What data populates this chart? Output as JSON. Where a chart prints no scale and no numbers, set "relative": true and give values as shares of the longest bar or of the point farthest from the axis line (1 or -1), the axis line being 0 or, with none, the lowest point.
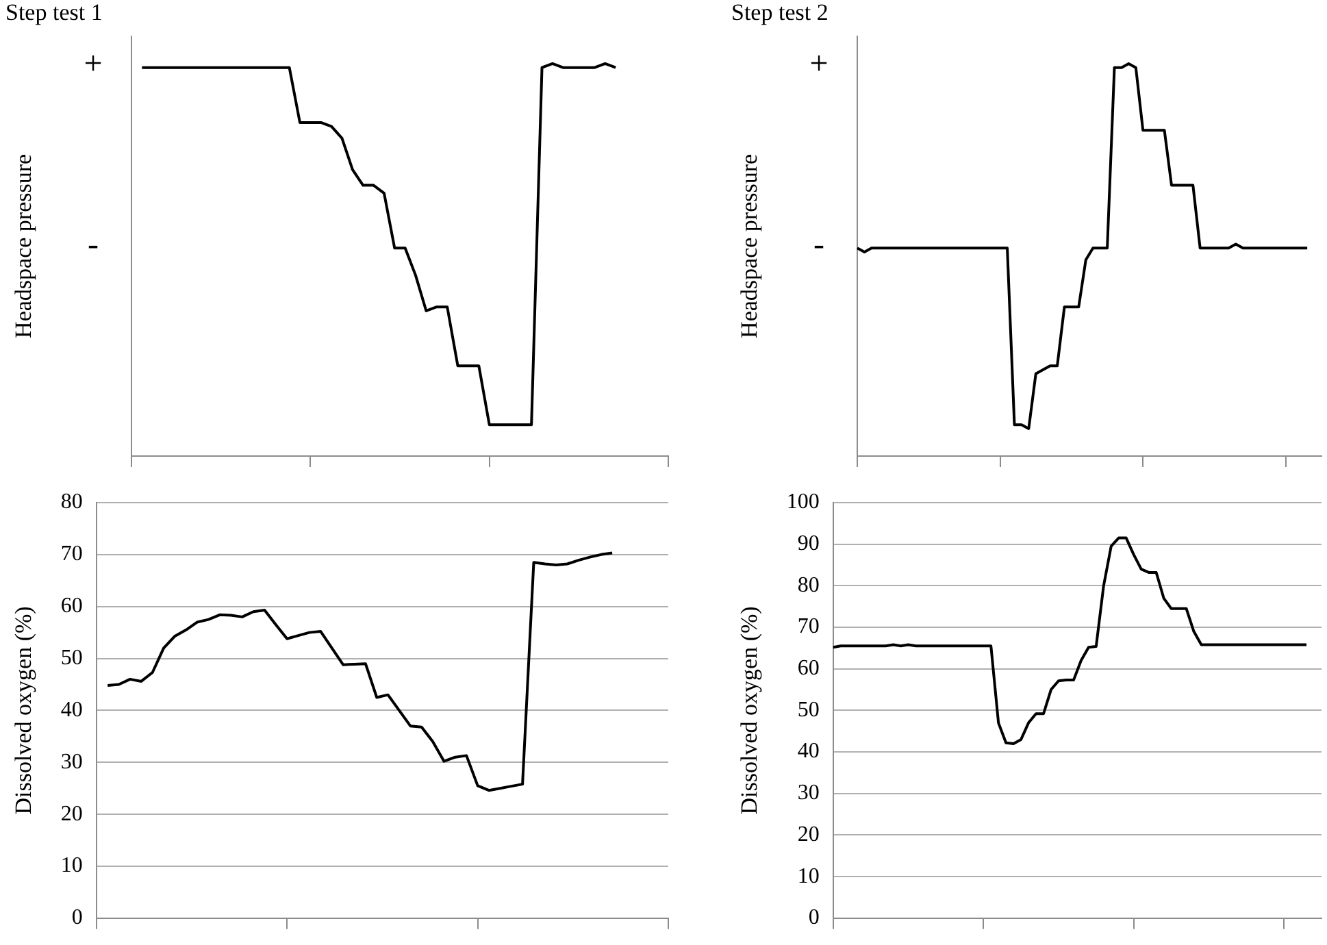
{
  "chart_data": [
    {
      "type": "line",
      "title": "Step test 1",
      "ylabel": "Headspace pressure",
      "categories": [
        null,
        null,
        null,
        null,
        null,
        null,
        null,
        null,
        null,
        null,
        null,
        null,
        null,
        null,
        null,
        null,
        null,
        null,
        null,
        null,
        null,
        null,
        null,
        null,
        null,
        null,
        null,
        null,
        null,
        null,
        null,
        null,
        null,
        null,
        null,
        null,
        null,
        null,
        null,
        null,
        null,
        null,
        null,
        null,
        null,
        null,
        null,
        null,
        null,
        null,
        null,
        null
      ],
      "series": [
        {
          "color": "#000000",
          "values": [
            null,
            0.99,
            0.99,
            0.99,
            0.99,
            0.99,
            0.99,
            0.99,
            0.99,
            0.99,
            0.99,
            0.99,
            0.99,
            0.99,
            0.99,
            0.99,
            0.85,
            0.85,
            0.85,
            0.84,
            0.81,
            0.73,
            0.69,
            0.69,
            0.67,
            0.53,
            0.53,
            0.46,
            0.37,
            0.38,
            0.38,
            0.23,
            0.23,
            0.23,
            0.08,
            0.08,
            0.08,
            0.08,
            0.08,
            0.99,
            1,
            0.99,
            0.99,
            0.99,
            0.99,
            1,
            0.99,
            null,
            null,
            null,
            null,
            null
          ]
        }
      ],
      "relative": true,
      "annotations": [
        "+",
        "-"
      ],
      "tick_labels": false
    },
    {
      "type": "line",
      "title": "Step test 2",
      "ylabel": "Headspace pressure",
      "categories": [
        null,
        null,
        null,
        null,
        null,
        null,
        null,
        null,
        null,
        null,
        null,
        null,
        null,
        null,
        null,
        null,
        null,
        null,
        null,
        null,
        null,
        null,
        null,
        null,
        null,
        null,
        null,
        null,
        null,
        null,
        null,
        null,
        null,
        null,
        null,
        null,
        null,
        null,
        null,
        null,
        null,
        null,
        null,
        null,
        null,
        null,
        null,
        null,
        null,
        null,
        null,
        null,
        null,
        null,
        null,
        null,
        null,
        null,
        null,
        null,
        null,
        null,
        null,
        null,
        null,
        null
      ],
      "series": [
        {
          "color": "#000000",
          "values": [
            0.53,
            0.52,
            0.53,
            0.53,
            0.53,
            0.53,
            0.53,
            0.53,
            0.53,
            0.53,
            0.53,
            0.53,
            0.53,
            0.53,
            0.53,
            0.53,
            0.53,
            0.53,
            0.53,
            0.53,
            0.53,
            0.53,
            0.08,
            0.08,
            0.07,
            0.21,
            0.22,
            0.23,
            0.23,
            0.38,
            0.38,
            0.38,
            0.5,
            0.53,
            0.53,
            0.53,
            0.99,
            0.99,
            1,
            0.99,
            0.83,
            0.83,
            0.83,
            0.83,
            0.69,
            0.69,
            0.69,
            0.69,
            0.53,
            0.53,
            0.53,
            0.53,
            0.53,
            0.54,
            0.53,
            0.53,
            0.53,
            0.53,
            0.53,
            0.53,
            0.53,
            0.53,
            0.53,
            0.53,
            null,
            null
          ]
        }
      ],
      "relative": true,
      "annotations": [
        "+",
        "-"
      ],
      "tick_labels": false
    },
    {
      "type": "line",
      "ylabel": "Dissolved oxygen (%)",
      "categories": [
        null,
        null,
        null,
        null,
        null,
        null,
        null,
        null,
        null,
        null,
        null,
        null,
        null,
        null,
        null,
        null,
        null,
        null,
        null,
        null,
        null,
        null,
        null,
        null,
        null,
        null,
        null,
        null,
        null,
        null,
        null,
        null,
        null,
        null,
        null,
        null,
        null,
        null,
        null,
        null,
        null,
        null,
        null,
        null,
        null,
        null,
        null,
        null,
        null,
        null,
        null,
        null
      ],
      "series": [
        {
          "color": "#000000",
          "values": [
            null,
            44.8,
            45,
            46,
            45.6,
            47.3,
            52,
            54.3,
            55.5,
            57,
            57.5,
            58.4,
            58.3,
            58,
            59,
            59.3,
            56.5,
            53.8,
            54.4,
            55,
            55.2,
            52,
            48.8,
            48.9,
            49,
            42.5,
            43,
            40,
            37,
            36.8,
            34,
            30.2,
            31,
            31.3,
            25.5,
            24.6,
            25,
            25.4,
            25.8,
            68.5,
            68.2,
            68,
            68.2,
            68.9,
            69.5,
            70,
            70.3,
            null,
            null,
            null,
            null,
            null
          ]
        }
      ],
      "ylim": [
        0,
        80
      ],
      "yticks": [
        0,
        10,
        20,
        30,
        40,
        50,
        60,
        70,
        80
      ],
      "grid": "y",
      "tick_labels": "y"
    },
    {
      "type": "line",
      "ylabel": "Dissolved oxygen (%)",
      "categories": [
        null,
        null,
        null,
        null,
        null,
        null,
        null,
        null,
        null,
        null,
        null,
        null,
        null,
        null,
        null,
        null,
        null,
        null,
        null,
        null,
        null,
        null,
        null,
        null,
        null,
        null,
        null,
        null,
        null,
        null,
        null,
        null,
        null,
        null,
        null,
        null,
        null,
        null,
        null,
        null,
        null,
        null,
        null,
        null,
        null,
        null,
        null,
        null,
        null,
        null,
        null,
        null,
        null,
        null,
        null,
        null,
        null,
        null,
        null,
        null,
        null,
        null,
        null,
        null,
        null,
        null
      ],
      "series": [
        {
          "color": "#000000",
          "values": [
            65.2,
            65.5,
            65.5,
            65.5,
            65.5,
            65.5,
            65.5,
            65.5,
            65.8,
            65.5,
            65.8,
            65.5,
            65.5,
            65.5,
            65.5,
            65.5,
            65.5,
            65.5,
            65.5,
            65.5,
            65.5,
            65.5,
            47,
            42.2,
            42,
            43,
            47,
            49.2,
            49.2,
            55,
            57.1,
            57.3,
            57.3,
            62,
            65.2,
            65.4,
            80,
            89.5,
            91.5,
            91.5,
            87.5,
            84,
            83.2,
            83.2,
            77,
            74.5,
            74.5,
            74.5,
            69,
            65.8,
            65.8,
            65.8,
            65.8,
            65.8,
            65.8,
            65.8,
            65.8,
            65.8,
            65.8,
            65.8,
            65.8,
            65.8,
            65.8,
            65.8,
            null,
            null
          ]
        }
      ],
      "ylim": [
        0,
        100
      ],
      "yticks": [
        0,
        10,
        20,
        30,
        40,
        50,
        60,
        70,
        80,
        90,
        100
      ],
      "grid": "y",
      "tick_labels": "y"
    }
  ]
}
